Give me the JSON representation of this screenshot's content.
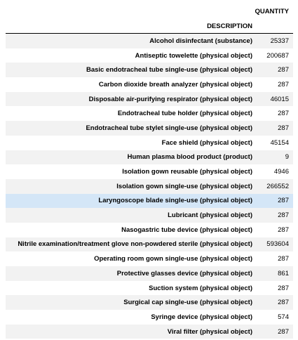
{
  "table": {
    "header_quantity": "QUANTITY",
    "header_description": "DESCRIPTION",
    "highlight_color": "#d4e6f7",
    "stripe_color": "#f2f2f2",
    "rows": [
      {
        "description": "Alcohol disinfectant (substance)",
        "quantity": "25337"
      },
      {
        "description": "Antiseptic towelette (physical object)",
        "quantity": "200687"
      },
      {
        "description": "Basic endotracheal tube single-use (physical object)",
        "quantity": "287"
      },
      {
        "description": "Carbon dioxide breath analyzer (physical object)",
        "quantity": "287"
      },
      {
        "description": "Disposable air-purifying respirator (physical object)",
        "quantity": "46015"
      },
      {
        "description": "Endotracheal tube holder (physical object)",
        "quantity": "287"
      },
      {
        "description": "Endotracheal tube stylet single-use (physical object)",
        "quantity": "287"
      },
      {
        "description": "Face shield (physical object)",
        "quantity": "45154"
      },
      {
        "description": "Human plasma blood product (product)",
        "quantity": "9"
      },
      {
        "description": "Isolation gown reusable (physical object)",
        "quantity": "4946"
      },
      {
        "description": "Isolation gown single-use (physical object)",
        "quantity": "266552"
      },
      {
        "description": "Laryngoscope blade single-use (physical object)",
        "quantity": "287"
      },
      {
        "description": "Lubricant (physical object)",
        "quantity": "287"
      },
      {
        "description": "Nasogastric tube device (physical object)",
        "quantity": "287"
      },
      {
        "description": "Nitrile examination/treatment glove non-powdered sterile (physical object)",
        "quantity": "593604"
      },
      {
        "description": "Operating room gown single-use (physical object)",
        "quantity": "287"
      },
      {
        "description": "Protective glasses device (physical object)",
        "quantity": "861"
      },
      {
        "description": "Suction system (physical object)",
        "quantity": "287"
      },
      {
        "description": "Surgical cap single-use (physical object)",
        "quantity": "287"
      },
      {
        "description": "Syringe device (physical object)",
        "quantity": "574"
      },
      {
        "description": "Viral filter (physical object)",
        "quantity": "287"
      }
    ]
  }
}
